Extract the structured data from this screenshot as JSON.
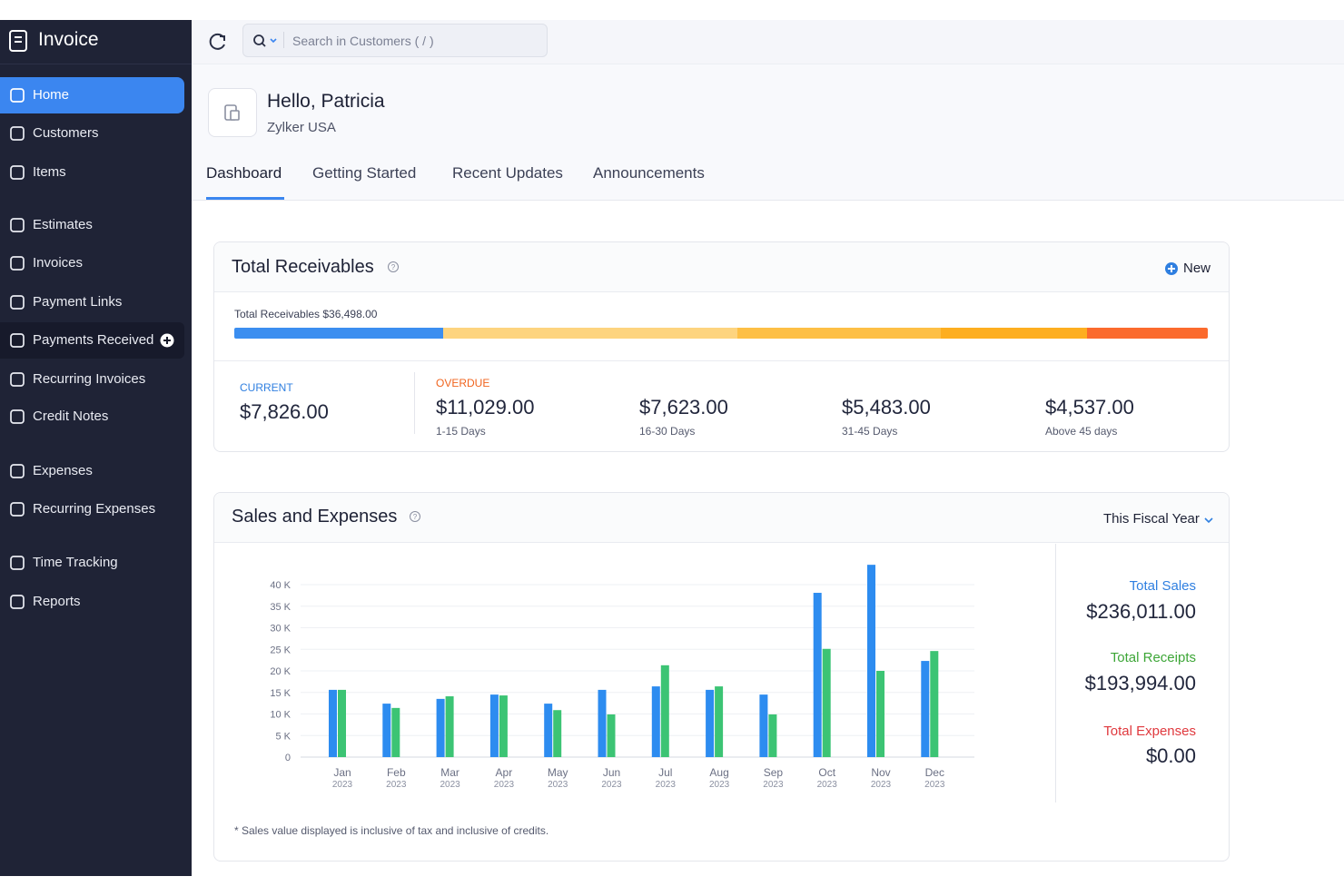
{
  "sidebar": {
    "brand": "Invoice",
    "nav": [
      "Home",
      "Customers",
      "Items",
      "Estimates",
      "Invoices",
      "Payment Links",
      "Payments Received",
      "Recurring Invoices",
      "Credit Notes",
      "Expenses",
      "Recurring Expenses",
      "Time Tracking",
      "Reports"
    ],
    "active": "Home"
  },
  "search": {
    "placeholder": "Search in Customers ( / )"
  },
  "header": {
    "greeting": "Hello, Patricia",
    "org": "Zylker USA"
  },
  "tabs": [
    "Dashboard",
    "Getting Started",
    "Recent Updates",
    "Announcements"
  ],
  "receivables": {
    "title": "Total Receivables",
    "new_button": "New",
    "summary": "Total Receivables $36,498.00",
    "current_heading": "CURRENT",
    "overdue_heading": "OVERDUE",
    "buckets": [
      {
        "amount": "$7,826.00",
        "value": 7826,
        "color": "#3b8ef0"
      },
      {
        "amount": "$11,029.00",
        "value": 11029,
        "caption": "1-15 Days",
        "color": "#fdd47f"
      },
      {
        "amount": "$7,623.00",
        "value": 7623,
        "caption": "16-30 Days",
        "color": "#fdbf45"
      },
      {
        "amount": "$5,483.00",
        "value": 5483,
        "caption": "31-45 Days",
        "color": "#fdae20"
      },
      {
        "amount": "$4,537.00",
        "value": 4537,
        "caption": "Above 45 days",
        "color": "#fb6a2d"
      }
    ]
  },
  "sales": {
    "title": "Sales and Expenses",
    "period": "This Fiscal Year",
    "footnote": "* Sales value displayed is inclusive of tax and inclusive of credits.",
    "totals": [
      {
        "label": "Total Sales",
        "amount": "$236,011.00",
        "color": "#2f7fe0"
      },
      {
        "label": "Total Receipts",
        "amount": "$193,994.00",
        "color": "#3da637"
      },
      {
        "label": "Total Expenses",
        "amount": "$0.00",
        "color": "#e0393e"
      }
    ]
  },
  "chart_data": {
    "type": "bar",
    "categories": [
      "Jan",
      "Feb",
      "Mar",
      "Apr",
      "May",
      "Jun",
      "Jul",
      "Aug",
      "Sep",
      "Oct",
      "Nov",
      "Dec"
    ],
    "category_years": [
      "2023",
      "2023",
      "2023",
      "2023",
      "2023",
      "2023",
      "2023",
      "2023",
      "2023",
      "2023",
      "2023",
      "2023"
    ],
    "series": [
      {
        "name": "Total Sales",
        "color": "#2d8cf0",
        "values": [
          15600,
          12400,
          13500,
          14500,
          12400,
          15600,
          16400,
          15600,
          14500,
          38100,
          44600,
          22300
        ]
      },
      {
        "name": "Total Receipts",
        "color": "#3cc474",
        "values": [
          15600,
          11400,
          14100,
          14300,
          10900,
          9900,
          21300,
          16400,
          9900,
          25100,
          20000,
          24600
        ]
      }
    ],
    "ylim": [
      0,
      45000
    ],
    "yticks": [
      0,
      {
        "value": 5000,
        "label": "5 K"
      },
      {
        "value": 10000,
        "label": "10 K"
      },
      {
        "value": 15000,
        "label": "15 K"
      },
      {
        "value": 20000,
        "label": "20 K"
      },
      {
        "value": 25000,
        "label": "25 K"
      },
      {
        "value": 30000,
        "label": "30 K"
      },
      {
        "value": 35000,
        "label": "35 K"
      },
      {
        "value": 40000,
        "label": "40 K"
      }
    ],
    "grid": true
  }
}
